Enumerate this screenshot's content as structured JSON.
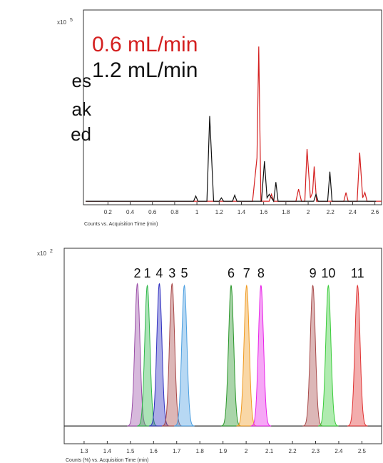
{
  "side_text": [
    "es",
    "ak",
    "ed"
  ],
  "chart_data": [
    {
      "type": "line",
      "multiplier": "x10",
      "exponent": "5",
      "xlabel": "Counts vs. Acquisition Time (min)",
      "xlim": [
        -0.02,
        2.66
      ],
      "ylim": [
        -0.02,
        1.1
      ],
      "xticks": [
        0.2,
        0.4,
        0.6,
        0.8,
        1,
        1.2,
        1.4,
        1.6,
        1.8,
        2,
        2.2,
        2.4,
        2.6
      ],
      "legend": "top-left",
      "series": [
        {
          "name": "0.6 mL/min",
          "color": "#d42020",
          "x": [
            0,
            1.5,
            1.54,
            1.556,
            1.575,
            1.65,
            1.67,
            1.69,
            1.89,
            1.914,
            1.94,
            1.97,
            1.99,
            2.02,
            2.04,
            2.054,
            2.075,
            2.32,
            2.34,
            2.36,
            2.44,
            2.463,
            2.49,
            2.51,
            2.53,
            2.66
          ],
          "values": [
            0,
            0,
            0.25,
            0.89,
            0,
            0,
            0.04,
            0,
            0,
            0.07,
            0,
            0,
            0.3,
            0.02,
            0.05,
            0.2,
            0,
            0,
            0.05,
            0,
            0,
            0.28,
            0.02,
            0.05,
            0,
            0
          ]
        },
        {
          "name": "1.2 mL/min",
          "color": "#111111",
          "x": [
            0,
            0.97,
            0.99,
            1.01,
            1.09,
            1.115,
            1.15,
            1.2,
            1.22,
            1.24,
            1.32,
            1.34,
            1.36,
            1.58,
            1.607,
            1.63,
            1.65,
            1.67,
            1.69,
            1.71,
            1.73,
            2.05,
            2.07,
            2.09,
            2.175,
            2.195,
            2.215,
            2.61
          ],
          "values": [
            0,
            0,
            0.03,
            0,
            0,
            0.49,
            0,
            0,
            0.02,
            0,
            0,
            0.035,
            0,
            0,
            0.23,
            0.02,
            0.04,
            0.02,
            0,
            0.11,
            0,
            0,
            0.04,
            0,
            0,
            0.17,
            0,
            0
          ]
        }
      ]
    },
    {
      "type": "peaks",
      "multiplier": "x10",
      "exponent": "2",
      "xlabel": "Counts (%) vs. Acquisition Time (min)",
      "xlim": [
        1.214,
        2.585
      ],
      "ylim": [
        -0.1,
        1.0
      ],
      "xticks": [
        1.3,
        1.4,
        1.5,
        1.6,
        1.7,
        1.8,
        1.9,
        2,
        2.1,
        2.2,
        2.3,
        2.4,
        2.5
      ],
      "peaks": [
        {
          "label": "2",
          "color": "#9b4fa8",
          "x": 1.53,
          "height": 0.8
        },
        {
          "label": "1",
          "color": "#2fb84a",
          "x": 1.573,
          "height": 0.79
        },
        {
          "label": "4",
          "color": "#3030c0",
          "x": 1.625,
          "height": 0.8
        },
        {
          "label": "3",
          "color": "#a84848",
          "x": 1.68,
          "height": 0.8
        },
        {
          "label": "5",
          "color": "#4a9ee0",
          "x": 1.733,
          "height": 0.79
        },
        {
          "label": "6",
          "color": "#2a962a",
          "x": 1.935,
          "height": 0.79
        },
        {
          "label": "7",
          "color": "#f09a20",
          "x": 2.002,
          "height": 0.79
        },
        {
          "label": "8",
          "color": "#e822e8",
          "x": 2.064,
          "height": 0.79
        },
        {
          "label": "9",
          "color": "#a84a4a",
          "x": 2.288,
          "height": 0.79
        },
        {
          "label": "10",
          "color": "#3acc3a",
          "x": 2.355,
          "height": 0.79
        },
        {
          "label": "11",
          "color": "#e03333",
          "x": 2.481,
          "height": 0.79
        }
      ]
    }
  ]
}
